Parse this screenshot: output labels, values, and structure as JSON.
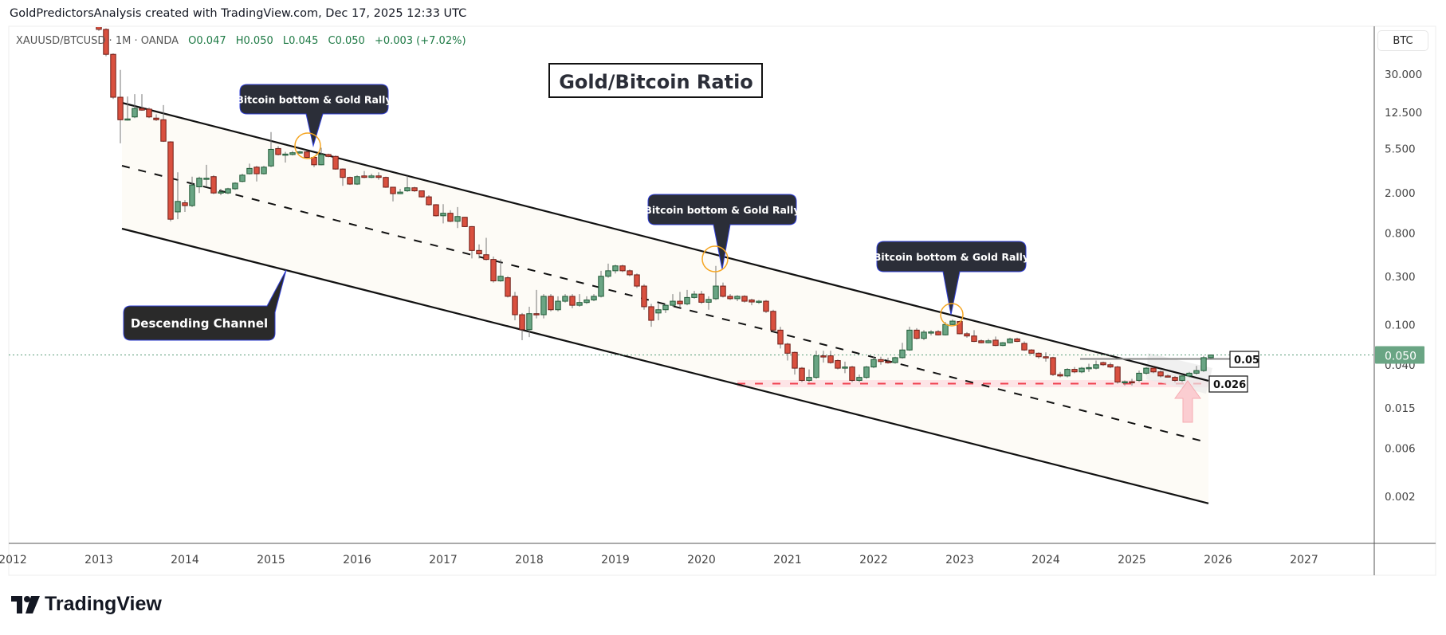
{
  "header": {
    "attribution": "GoldPredictorsAnalysis created with TradingView.com, Dec 17, 2025 12:33 UTC"
  },
  "legend": {
    "symbol": "XAUUSD/BTCUSD · 1M · OANDA",
    "open": "O0.047",
    "high": "H0.050",
    "low": "L0.045",
    "close": "C0.050",
    "change": "+0.003 (+7.02%)"
  },
  "currency_button": "BTC",
  "logo_text": "TradingView",
  "colors": {
    "up": "#6aa584",
    "up_border": "#1f5a36",
    "down": "#d9503f",
    "down_border": "#6e1c16",
    "price_tag": "#6aa584",
    "channel_fill": "#fdfbf6",
    "support": "#f0404f",
    "callout": "#2b2e38",
    "callout_border": "#3240d8",
    "circle": "#f5a623"
  },
  "chart_data": {
    "type": "candlestick",
    "title": "Gold/Bitcoin Ratio",
    "y_scale": "log",
    "y_unit": "BTC",
    "ylim": [
      0.0012,
      150
    ],
    "xlim": [
      "2012-01",
      "2027-11"
    ],
    "x_ticks": [
      "2012",
      "2013",
      "2014",
      "2015",
      "2016",
      "2017",
      "2018",
      "2019",
      "2020",
      "2021",
      "2022",
      "2023",
      "2024",
      "2025",
      "2026",
      "2027"
    ],
    "y_ticks": [
      {
        "value": 30,
        "label": "30.000"
      },
      {
        "value": 12.5,
        "label": "12.500"
      },
      {
        "value": 5.5,
        "label": "5.500"
      },
      {
        "value": 2,
        "label": "2.000"
      },
      {
        "value": 0.8,
        "label": "0.800"
      },
      {
        "value": 0.3,
        "label": "0.300"
      },
      {
        "value": 0.1,
        "label": "0.100"
      },
      {
        "value": 0.04,
        "label": "0.040"
      },
      {
        "value": 0.015,
        "label": "0.015"
      },
      {
        "value": 0.006,
        "label": "0.006"
      },
      {
        "value": 0.002,
        "label": "0.002"
      }
    ],
    "last_price": {
      "value": 0.05,
      "label": "0.050"
    },
    "grid": false,
    "candle_fields": [
      "date",
      "open",
      "high",
      "low",
      "close"
    ],
    "candles": [
      [
        "2013-01",
        100,
        110,
        80,
        83
      ],
      [
        "2013-02",
        83,
        85,
        45,
        47
      ],
      [
        "2013-03",
        47,
        48,
        17,
        17.7
      ],
      [
        "2013-04",
        17.7,
        33,
        6.2,
        10.6
      ],
      [
        "2013-05",
        10.6,
        18,
        10.4,
        10.8
      ],
      [
        "2013-06",
        11.3,
        19,
        11,
        13.7
      ],
      [
        "2013-07",
        13.7,
        19,
        13,
        13.2
      ],
      [
        "2013-08",
        13.5,
        14,
        11,
        11.3
      ],
      [
        "2013-09",
        11.0,
        12,
        10.3,
        10.6
      ],
      [
        "2013-10",
        10.6,
        14.8,
        6.4,
        6.5
      ],
      [
        "2013-11",
        6.4,
        6.5,
        1.05,
        1.1
      ],
      [
        "2013-12",
        1.3,
        3.2,
        1.1,
        1.65
      ],
      [
        "2014-01",
        1.6,
        1.7,
        1.3,
        1.5
      ],
      [
        "2014-02",
        1.5,
        2.9,
        1.45,
        2.4
      ],
      [
        "2014-03",
        2.3,
        2.9,
        2.0,
        2.8
      ],
      [
        "2014-04",
        2.75,
        3.8,
        2.3,
        2.8
      ],
      [
        "2014-05",
        2.9,
        3.0,
        1.95,
        2.0
      ],
      [
        "2014-06",
        2.0,
        2.2,
        1.9,
        2.05
      ],
      [
        "2014-07",
        2.0,
        2.25,
        1.95,
        2.2
      ],
      [
        "2014-08",
        2.2,
        2.55,
        2.15,
        2.5
      ],
      [
        "2014-09",
        2.6,
        3.1,
        2.55,
        3.0
      ],
      [
        "2014-10",
        3.1,
        3.9,
        3.05,
        3.5
      ],
      [
        "2014-11",
        3.6,
        3.7,
        2.6,
        3.1
      ],
      [
        "2014-12",
        3.1,
        3.7,
        3.05,
        3.6
      ],
      [
        "2015-01",
        3.7,
        8,
        3.6,
        5.4
      ],
      [
        "2015-02",
        5.5,
        5.8,
        4.7,
        4.8
      ],
      [
        "2015-03",
        4.8,
        5.1,
        4.0,
        4.85
      ],
      [
        "2015-04",
        4.8,
        5.2,
        4.7,
        5.0
      ],
      [
        "2015-05",
        5.0,
        5.2,
        4.9,
        5.1
      ],
      [
        "2015-06",
        5.1,
        5.2,
        4.4,
        4.5
      ],
      [
        "2015-07",
        4.5,
        4.6,
        3.6,
        3.8
      ],
      [
        "2015-08",
        3.8,
        5.6,
        3.75,
        4.8
      ],
      [
        "2015-09",
        4.8,
        4.9,
        4.5,
        4.6
      ],
      [
        "2015-10",
        4.6,
        4.7,
        3.4,
        3.45
      ],
      [
        "2015-11",
        3.45,
        3.5,
        2.35,
        2.85
      ],
      [
        "2015-12",
        2.85,
        2.9,
        2.4,
        2.45
      ],
      [
        "2016-01",
        2.45,
        3.0,
        2.4,
        2.9
      ],
      [
        "2016-02",
        2.95,
        3.3,
        2.8,
        2.85
      ],
      [
        "2016-03",
        2.85,
        3.1,
        2.8,
        2.95
      ],
      [
        "2016-04",
        2.95,
        3.2,
        2.7,
        2.85
      ],
      [
        "2016-05",
        2.85,
        2.9,
        2.25,
        2.28
      ],
      [
        "2016-06",
        2.28,
        2.3,
        1.65,
        1.97
      ],
      [
        "2016-07",
        1.97,
        2.2,
        1.95,
        2.04
      ],
      [
        "2016-08",
        2.1,
        2.95,
        2.05,
        2.25
      ],
      [
        "2016-09",
        2.25,
        2.3,
        2.05,
        2.1
      ],
      [
        "2016-10",
        2.1,
        2.1,
        1.8,
        1.83
      ],
      [
        "2016-11",
        1.83,
        1.9,
        1.5,
        1.53
      ],
      [
        "2016-12",
        1.53,
        1.55,
        1.17,
        1.19
      ],
      [
        "2017-01",
        1.19,
        1.55,
        1.0,
        1.26
      ],
      [
        "2017-02",
        1.26,
        1.35,
        1.03,
        1.05
      ],
      [
        "2017-03",
        1.05,
        1.45,
        0.9,
        1.17
      ],
      [
        "2017-04",
        1.15,
        1.16,
        0.92,
        0.93
      ],
      [
        "2017-05",
        0.93,
        0.94,
        0.45,
        0.54
      ],
      [
        "2017-06",
        0.54,
        0.62,
        0.45,
        0.5
      ],
      [
        "2017-07",
        0.49,
        0.72,
        0.43,
        0.44
      ],
      [
        "2017-08",
        0.44,
        0.47,
        0.26,
        0.27
      ],
      [
        "2017-09",
        0.27,
        0.44,
        0.265,
        0.3
      ],
      [
        "2017-10",
        0.29,
        0.3,
        0.185,
        0.19
      ],
      [
        "2017-11",
        0.19,
        0.21,
        0.11,
        0.125
      ],
      [
        "2017-12",
        0.125,
        0.13,
        0.07,
        0.089
      ],
      [
        "2018-01",
        0.089,
        0.15,
        0.075,
        0.128
      ],
      [
        "2018-02",
        0.128,
        0.22,
        0.115,
        0.125
      ],
      [
        "2018-03",
        0.125,
        0.2,
        0.115,
        0.19
      ],
      [
        "2018-04",
        0.19,
        0.2,
        0.135,
        0.14
      ],
      [
        "2018-05",
        0.14,
        0.19,
        0.135,
        0.17
      ],
      [
        "2018-06",
        0.17,
        0.2,
        0.165,
        0.19
      ],
      [
        "2018-07",
        0.19,
        0.2,
        0.145,
        0.155
      ],
      [
        "2018-08",
        0.155,
        0.2,
        0.15,
        0.165
      ],
      [
        "2018-09",
        0.165,
        0.19,
        0.16,
        0.175
      ],
      [
        "2018-10",
        0.175,
        0.2,
        0.17,
        0.19
      ],
      [
        "2018-11",
        0.19,
        0.34,
        0.185,
        0.3
      ],
      [
        "2018-12",
        0.3,
        0.4,
        0.29,
        0.34
      ],
      [
        "2019-01",
        0.34,
        0.39,
        0.32,
        0.38
      ],
      [
        "2019-02",
        0.38,
        0.39,
        0.33,
        0.34
      ],
      [
        "2019-03",
        0.34,
        0.35,
        0.3,
        0.31
      ],
      [
        "2019-04",
        0.31,
        0.32,
        0.23,
        0.24
      ],
      [
        "2019-05",
        0.24,
        0.25,
        0.14,
        0.15
      ],
      [
        "2019-06",
        0.15,
        0.16,
        0.095,
        0.11
      ],
      [
        "2019-07",
        0.13,
        0.16,
        0.11,
        0.14
      ],
      [
        "2019-08",
        0.14,
        0.16,
        0.13,
        0.155
      ],
      [
        "2019-09",
        0.155,
        0.2,
        0.15,
        0.17
      ],
      [
        "2019-10",
        0.17,
        0.21,
        0.15,
        0.16
      ],
      [
        "2019-11",
        0.16,
        0.22,
        0.155,
        0.185
      ],
      [
        "2019-12",
        0.185,
        0.215,
        0.18,
        0.2
      ],
      [
        "2020-01",
        0.2,
        0.215,
        0.16,
        0.166
      ],
      [
        "2020-02",
        0.166,
        0.19,
        0.14,
        0.177
      ],
      [
        "2020-03",
        0.18,
        0.38,
        0.175,
        0.24
      ],
      [
        "2020-04",
        0.24,
        0.26,
        0.185,
        0.19
      ],
      [
        "2020-05",
        0.19,
        0.2,
        0.175,
        0.18
      ],
      [
        "2020-06",
        0.18,
        0.195,
        0.17,
        0.19
      ],
      [
        "2020-07",
        0.19,
        0.195,
        0.165,
        0.17
      ],
      [
        "2020-08",
        0.175,
        0.18,
        0.155,
        0.167
      ],
      [
        "2020-09",
        0.166,
        0.175,
        0.16,
        0.17
      ],
      [
        "2020-10",
        0.17,
        0.175,
        0.13,
        0.135
      ],
      [
        "2020-11",
        0.135,
        0.14,
        0.085,
        0.088
      ],
      [
        "2020-12",
        0.088,
        0.095,
        0.058,
        0.064
      ],
      [
        "2021-01",
        0.064,
        0.066,
        0.044,
        0.052
      ],
      [
        "2021-02",
        0.053,
        0.054,
        0.032,
        0.037
      ],
      [
        "2021-03",
        0.037,
        0.038,
        0.027,
        0.028
      ],
      [
        "2021-04",
        0.028,
        0.036,
        0.027,
        0.03
      ],
      [
        "2021-05",
        0.03,
        0.055,
        0.029,
        0.049
      ],
      [
        "2021-06",
        0.049,
        0.055,
        0.042,
        0.048
      ],
      [
        "2021-07",
        0.049,
        0.055,
        0.041,
        0.042
      ],
      [
        "2021-08",
        0.044,
        0.045,
        0.036,
        0.037
      ],
      [
        "2021-09",
        0.037,
        0.043,
        0.033,
        0.038
      ],
      [
        "2021-10",
        0.038,
        0.039,
        0.027,
        0.028
      ],
      [
        "2021-11",
        0.028,
        0.032,
        0.027,
        0.03
      ],
      [
        "2021-12",
        0.03,
        0.039,
        0.029,
        0.038
      ],
      [
        "2022-01",
        0.038,
        0.048,
        0.037,
        0.045
      ],
      [
        "2022-02",
        0.045,
        0.048,
        0.04,
        0.043
      ],
      [
        "2022-03",
        0.043,
        0.047,
        0.041,
        0.042
      ],
      [
        "2022-04",
        0.042,
        0.048,
        0.041,
        0.047
      ],
      [
        "2022-05",
        0.047,
        0.066,
        0.046,
        0.056
      ],
      [
        "2022-06",
        0.056,
        0.095,
        0.055,
        0.088
      ],
      [
        "2022-07",
        0.088,
        0.092,
        0.071,
        0.073
      ],
      [
        "2022-08",
        0.073,
        0.088,
        0.07,
        0.084
      ],
      [
        "2022-09",
        0.084,
        0.088,
        0.078,
        0.0845
      ],
      [
        "2022-10",
        0.085,
        0.088,
        0.078,
        0.079
      ],
      [
        "2022-11",
        0.079,
        0.106,
        0.078,
        0.1
      ],
      [
        "2022-12",
        0.1,
        0.112,
        0.099,
        0.108
      ],
      [
        "2023-01",
        0.107,
        0.109,
        0.08,
        0.081
      ],
      [
        "2023-02",
        0.081,
        0.084,
        0.074,
        0.077
      ],
      [
        "2023-03",
        0.077,
        0.088,
        0.067,
        0.068
      ],
      [
        "2023-04",
        0.069,
        0.071,
        0.065,
        0.066
      ],
      [
        "2023-05",
        0.066,
        0.072,
        0.065,
        0.069
      ],
      [
        "2023-06",
        0.07,
        0.076,
        0.061,
        0.062
      ],
      [
        "2023-07",
        0.062,
        0.067,
        0.061,
        0.066
      ],
      [
        "2023-08",
        0.066,
        0.074,
        0.065,
        0.072
      ],
      [
        "2023-09",
        0.072,
        0.074,
        0.067,
        0.068
      ],
      [
        "2023-10",
        0.065,
        0.068,
        0.055,
        0.056
      ],
      [
        "2023-11",
        0.056,
        0.057,
        0.051,
        0.052
      ],
      [
        "2023-12",
        0.052,
        0.053,
        0.046,
        0.048
      ],
      [
        "2024-01",
        0.048,
        0.053,
        0.043,
        0.047
      ],
      [
        "2024-02",
        0.047,
        0.048,
        0.031,
        0.032
      ],
      [
        "2024-03",
        0.032,
        0.034,
        0.03,
        0.031
      ],
      [
        "2024-04",
        0.031,
        0.037,
        0.03,
        0.036
      ],
      [
        "2024-05",
        0.036,
        0.038,
        0.033,
        0.034
      ],
      [
        "2024-06",
        0.034,
        0.038,
        0.033,
        0.037
      ],
      [
        "2024-07",
        0.037,
        0.041,
        0.034,
        0.0375
      ],
      [
        "2024-08",
        0.037,
        0.044,
        0.036,
        0.04
      ],
      [
        "2024-09",
        0.042,
        0.043,
        0.039,
        0.04
      ],
      [
        "2024-10",
        0.04,
        0.042,
        0.037,
        0.038
      ],
      [
        "2024-11",
        0.038,
        0.039,
        0.026,
        0.027
      ],
      [
        "2024-12",
        0.027,
        0.028,
        0.025,
        0.0272
      ],
      [
        "2025-01",
        0.0272,
        0.029,
        0.025,
        0.027
      ],
      [
        "2025-02",
        0.028,
        0.035,
        0.027,
        0.033
      ],
      [
        "2025-03",
        0.033,
        0.038,
        0.032,
        0.037
      ],
      [
        "2025-04",
        0.037,
        0.038,
        0.033,
        0.034
      ],
      [
        "2025-05",
        0.034,
        0.035,
        0.03,
        0.031
      ],
      [
        "2025-06",
        0.031,
        0.032,
        0.03,
        0.0305
      ],
      [
        "2025-07",
        0.03,
        0.031,
        0.027,
        0.028
      ],
      [
        "2025-08",
        0.028,
        0.032,
        0.027,
        0.031
      ],
      [
        "2025-09",
        0.031,
        0.034,
        0.03,
        0.033
      ],
      [
        "2025-10",
        0.033,
        0.039,
        0.032,
        0.035
      ],
      [
        "2025-11",
        0.035,
        0.049,
        0.034,
        0.047
      ],
      [
        "2025-12",
        0.047,
        0.05,
        0.045,
        0.05
      ]
    ],
    "annotations": {
      "callouts": [
        "Bitcoin bottom & Gold Rally",
        "Bitcoin bottom & Gold Rally",
        "Bitcoin bottom & Gold Rally"
      ],
      "channel_label": "Descending Channel",
      "resistance_label": "0.05",
      "support_label": "0.026"
    }
  }
}
